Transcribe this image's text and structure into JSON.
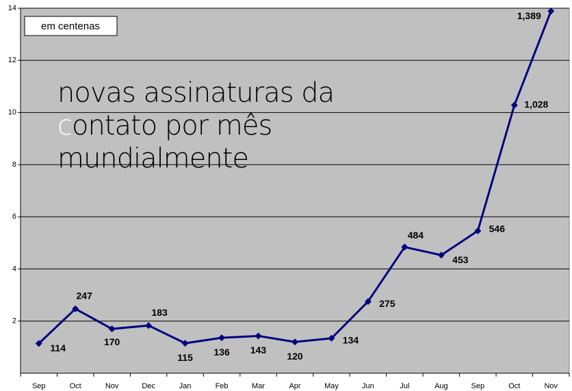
{
  "chart_data": {
    "type": "line",
    "title_lines": [
      "novas assinaturas da",
      "contato por mês",
      "mundialmente"
    ],
    "annotation": "em centenas",
    "categories": [
      "Sep",
      "Oct",
      "Nov",
      "Dec",
      "Jan",
      "Feb",
      "Mar",
      "Apr",
      "May",
      "Jun",
      "Jul",
      "Aug",
      "Sep",
      "Oct",
      "Nov"
    ],
    "series": [
      {
        "name": "novas assinaturas",
        "color": "#000080",
        "values": [
          1.14,
          2.47,
          1.7,
          1.83,
          1.15,
          1.36,
          1.43,
          1.2,
          1.34,
          2.75,
          4.84,
          4.53,
          5.46,
          10.28,
          13.89
        ],
        "value_labels": [
          "114",
          "247",
          "170",
          "183",
          "115",
          "136",
          "143",
          "120",
          "134",
          "275",
          "484",
          "453",
          "546",
          "1,028",
          "1,389"
        ]
      }
    ],
    "ylim": [
      0,
      14
    ],
    "yticks": [
      2,
      4,
      6,
      8,
      10,
      12,
      14
    ],
    "grid": true,
    "background": "#c0c0c0"
  }
}
